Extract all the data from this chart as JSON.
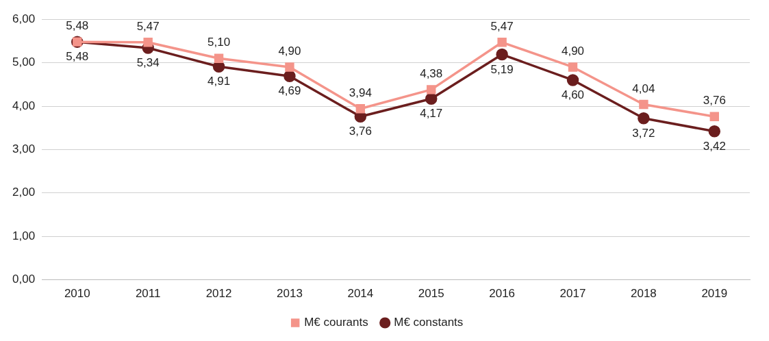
{
  "chart_data": {
    "type": "line",
    "categories": [
      "2010",
      "2011",
      "2012",
      "2013",
      "2014",
      "2015",
      "2016",
      "2017",
      "2018",
      "2019"
    ],
    "series": [
      {
        "name": "M€ courants",
        "color": "#f4948a",
        "marker": "square",
        "values": [
          5.48,
          5.47,
          5.1,
          4.9,
          3.94,
          4.38,
          5.47,
          4.9,
          4.04,
          3.76
        ],
        "value_labels": [
          "5,48",
          "5,47",
          "5,10",
          "4,90",
          "3,94",
          "4,38",
          "5,47",
          "4,90",
          "4,04",
          "3,76"
        ]
      },
      {
        "name": "M€ constants",
        "color": "#6b1e1e",
        "marker": "circle",
        "values": [
          5.48,
          5.34,
          4.91,
          4.69,
          3.76,
          4.17,
          5.19,
          4.6,
          3.72,
          3.42
        ],
        "value_labels": [
          "5,48",
          "5,34",
          "4,91",
          "4,69",
          "3,76",
          "4,17",
          "5,19",
          "4,60",
          "3,72",
          "3,42"
        ]
      }
    ],
    "ylim": [
      0,
      6
    ],
    "yticks": [
      {
        "value": 0,
        "label": "0,00"
      },
      {
        "value": 1,
        "label": "1,00"
      },
      {
        "value": 2,
        "label": "2,00"
      },
      {
        "value": 3,
        "label": "3,00"
      },
      {
        "value": 4,
        "label": "4,00"
      },
      {
        "value": 5,
        "label": "5,00"
      },
      {
        "value": 6,
        "label": "6,00"
      }
    ],
    "grid": "y",
    "legend": "bottom",
    "line_style": "solid"
  }
}
